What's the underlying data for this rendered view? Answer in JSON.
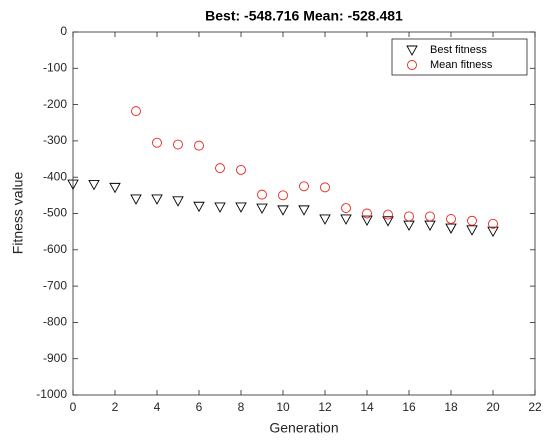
{
  "chart_data": {
    "type": "scatter",
    "title": "Best: -548.716 Mean: -528.481",
    "xlabel": "Generation",
    "ylabel": "Fitness value",
    "x": [
      0,
      1,
      2,
      3,
      4,
      5,
      6,
      7,
      8,
      9,
      10,
      11,
      12,
      13,
      14,
      15,
      16,
      17,
      18,
      19,
      20
    ],
    "series": [
      {
        "name": "Best fitness",
        "color": "#000000",
        "marker": "triangle-down",
        "values": [
          -419,
          -420,
          -428,
          -460,
          -460,
          -465,
          -480,
          -482,
          -482,
          -485,
          -490,
          -490,
          -515,
          -515,
          -518,
          -520,
          -532,
          -532,
          -540,
          -545,
          -548.716
        ]
      },
      {
        "name": "Mean fitness",
        "color": "#e8261c",
        "marker": "circle",
        "values": [
          null,
          null,
          null,
          -218,
          -305,
          -310,
          -313,
          -375,
          -380,
          -448,
          -450,
          -425,
          -428,
          -485,
          -500,
          -503,
          -508,
          -508,
          -515,
          -520,
          -528.481
        ]
      }
    ],
    "xlim": [
      0,
      22
    ],
    "xticks": [
      0,
      2,
      4,
      6,
      8,
      10,
      12,
      14,
      16,
      18,
      20,
      22
    ],
    "ylim": [
      -1000,
      0
    ],
    "yticks": [
      0,
      -100,
      -200,
      -300,
      -400,
      -500,
      -600,
      -700,
      -800,
      -900,
      -1000
    ],
    "legend": "upper right"
  }
}
